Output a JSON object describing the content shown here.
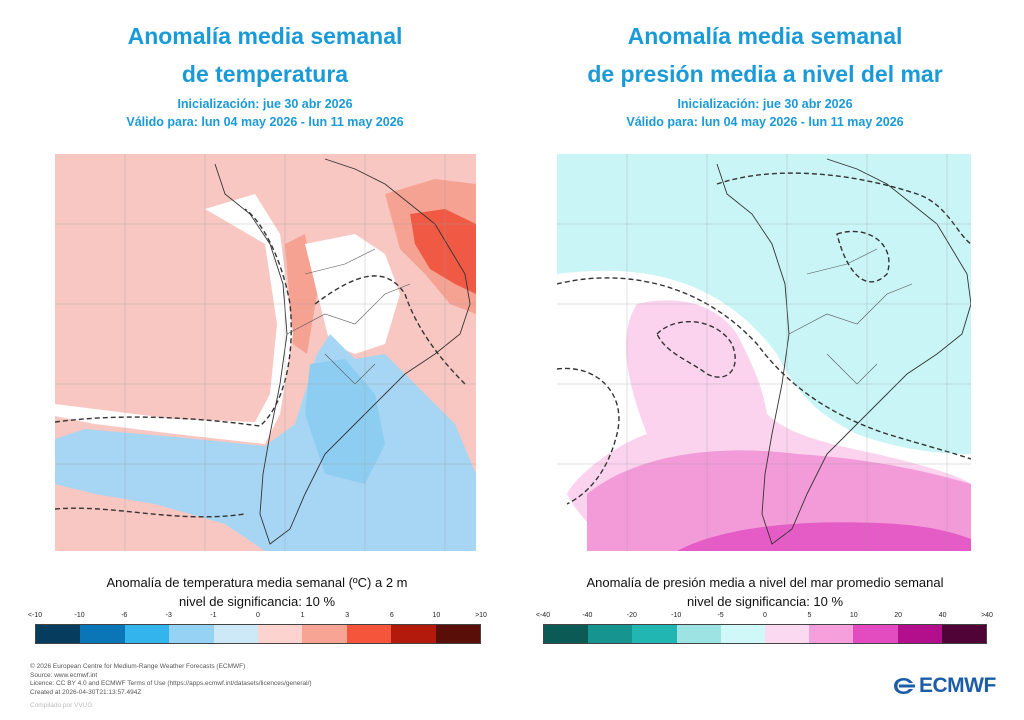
{
  "left_panel": {
    "title_line1": "Anomalía media semanal",
    "title_line2": "de temperatura",
    "init_text": "Inicialización: jue 30 abr 2026",
    "valid_text": "Válido para: lun 04 may 2026 - lun 11 may 2026",
    "caption_line1": "Anomalía de temperatura media semanal (ºC) a 2 m",
    "caption_line2": "nivel de significancia: 10 %",
    "colorbar_ticks": [
      "<-10",
      "-10",
      "-6",
      "-3",
      "-1",
      "0",
      "1",
      "3",
      "6",
      "10",
      ">10"
    ],
    "colorbar_colors": [
      "#063c5e",
      "#0a76b8",
      "#34b4ec",
      "#95d2f3",
      "#cde9f7",
      "#fcd3cf",
      "#f8a494",
      "#f5553a",
      "#b31a0c",
      "#5a0e08"
    ],
    "map_colors": {
      "base": "#f9c7c1",
      "warm": "#f6a293",
      "hot": "#f05a45",
      "cold": "#a6d6f4",
      "cold2": "#8ecdf2",
      "neutral": "#ffffff"
    }
  },
  "right_panel": {
    "title_line1": "Anomalía media semanal",
    "title_line2": "de presión media a nivel del mar",
    "init_text": "Inicialización: jue 30 abr 2026",
    "valid_text": "Válido para: lun 04 may 2026 - lun 11 may 2026",
    "caption_line1": "Anomalía de presión media a nivel del mar promedio semanal",
    "caption_line2": "nivel de significancia: 10 %",
    "colorbar_ticks": [
      "<-40",
      "-40",
      "-20",
      "-10",
      "-5",
      "0",
      "5",
      "10",
      "20",
      "40",
      ">40"
    ],
    "colorbar_colors": [
      "#0b5a55",
      "#16948f",
      "#22b6b3",
      "#9ee3e4",
      "#d1f8f9",
      "#fbd9f0",
      "#f59fdc",
      "#e24cc0",
      "#b30f8c",
      "#4f0337"
    ],
    "map_colors": {
      "base": "#c9f5f6",
      "pink1": "#fbd3ef",
      "pink2": "#f29bd8",
      "pink3": "#e65cc6",
      "neutral": "#ffffff"
    }
  },
  "footer": {
    "line1": "© 2026 European Centre for Medium-Range Weather Forecasts (ECMWF)",
    "line2": "Source: www.ecmwf.int",
    "line3": "Licence: CC BY 4.0 and ECMWF Terms of Use (https://apps.ecmwf.int/datasets/licences/general/)",
    "line4": "Created at 2026-04-30T21:13:57.494Z",
    "compiled": "Compilado por VVUG"
  },
  "logo": {
    "text": "ECMWF",
    "color": "#1d5da8"
  }
}
